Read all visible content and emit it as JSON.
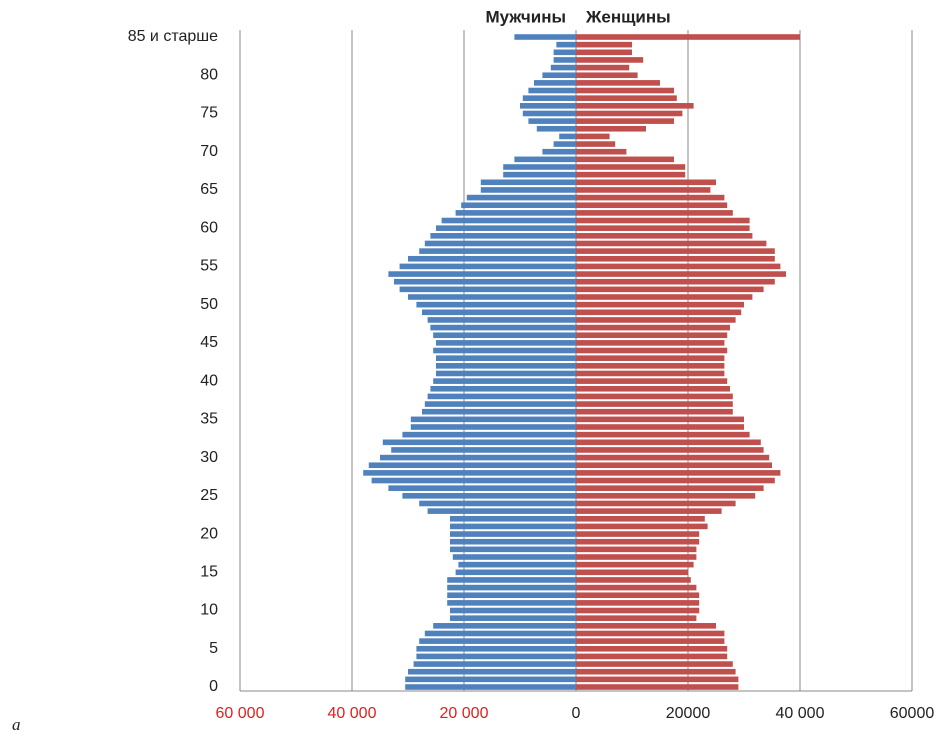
{
  "chart_data": {
    "type": "pyramid",
    "panel_label": "а",
    "categories": [
      "0",
      null,
      null,
      null,
      null,
      "5",
      null,
      null,
      null,
      null,
      "10",
      null,
      null,
      null,
      null,
      "15",
      null,
      null,
      null,
      null,
      "20",
      null,
      null,
      null,
      null,
      "25",
      null,
      null,
      null,
      null,
      "30",
      null,
      null,
      null,
      null,
      "35",
      null,
      null,
      null,
      null,
      "40",
      null,
      null,
      null,
      null,
      "45",
      null,
      null,
      null,
      null,
      "50",
      null,
      null,
      null,
      null,
      "55",
      null,
      null,
      null,
      null,
      "60",
      null,
      null,
      null,
      null,
      "65",
      null,
      null,
      null,
      null,
      "70",
      null,
      null,
      null,
      null,
      "75",
      null,
      null,
      null,
      null,
      "80",
      null,
      null,
      null,
      null,
      "85 и старше"
    ],
    "series": [
      {
        "name": "Мужчины",
        "color": "#4f81bd",
        "side": "left",
        "values": [
          30500,
          30500,
          30000,
          29000,
          28500,
          28500,
          28000,
          27000,
          25500,
          22500,
          22500,
          23000,
          23000,
          23000,
          23000,
          21500,
          21000,
          22000,
          22500,
          22500,
          22500,
          22500,
          22500,
          26500,
          28000,
          31000,
          33500,
          36500,
          38000,
          37000,
          35000,
          33000,
          34500,
          31000,
          29500,
          29500,
          27500,
          27000,
          26500,
          26000,
          25500,
          25000,
          25000,
          25000,
          25500,
          25000,
          25500,
          26000,
          26500,
          27500,
          28500,
          30000,
          31500,
          32500,
          33500,
          31500,
          30000,
          28000,
          27000,
          26000,
          25000,
          24000,
          21500,
          20500,
          19500,
          17000,
          17000,
          13000,
          13000,
          11000,
          6000,
          4000,
          3000,
          7000,
          8500,
          9500,
          10000,
          9500,
          8500,
          7500,
          6000,
          4500,
          4000,
          4000,
          3500,
          11000
        ]
      },
      {
        "name": "Женщины",
        "color": "#c0504d",
        "side": "right",
        "values": [
          29000,
          29000,
          28500,
          28000,
          27000,
          27000,
          26500,
          26500,
          25000,
          21500,
          22000,
          22000,
          22000,
          21500,
          20500,
          20000,
          21000,
          21500,
          21500,
          22000,
          22000,
          23500,
          23000,
          26000,
          28500,
          32000,
          33500,
          35500,
          36500,
          35000,
          34500,
          33500,
          33000,
          31000,
          30000,
          30000,
          28000,
          28000,
          28000,
          27500,
          27000,
          26500,
          26500,
          26500,
          27000,
          26500,
          27000,
          27500,
          28500,
          29500,
          30000,
          31500,
          33500,
          35500,
          37500,
          36500,
          35500,
          35500,
          34000,
          31500,
          31000,
          31000,
          28000,
          27000,
          26500,
          24000,
          25000,
          19500,
          19500,
          17500,
          9000,
          7000,
          6000,
          12500,
          17500,
          19000,
          21000,
          18000,
          17500,
          15000,
          11000,
          9500,
          12000,
          10000,
          10000,
          40000
        ]
      }
    ],
    "xlim": [
      -60000,
      60000
    ],
    "xticks": [
      {
        "value": -60000,
        "label": "60 000"
      },
      {
        "value": -40000,
        "label": "40 000"
      },
      {
        "value": -20000,
        "label": "20 000"
      },
      0,
      {
        "value": 20000,
        "label": "20000"
      },
      {
        "value": 40000,
        "label": "40 000"
      },
      {
        "value": 60000,
        "label": "60000"
      }
    ],
    "grid": true
  }
}
